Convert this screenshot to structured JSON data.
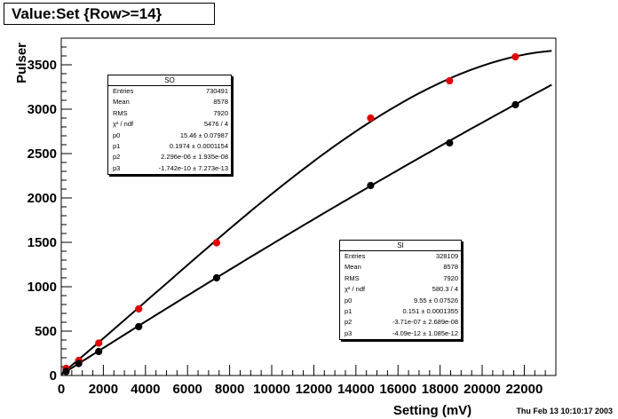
{
  "header": {
    "title": "Value:Set {Row>=14}"
  },
  "footer": {
    "timestamp": "Thu Feb 13 10:10:17 2003"
  },
  "chart_data": {
    "type": "scatter",
    "xlabel": "Setting (mV)",
    "ylabel": "Pulser",
    "xlim": [
      0,
      23500
    ],
    "ylim": [
      0,
      3800
    ],
    "xticks": [
      0,
      2000,
      4000,
      6000,
      8000,
      10000,
      12000,
      14000,
      16000,
      18000,
      20000,
      22000
    ],
    "yticks": [
      0,
      500,
      1000,
      1500,
      2000,
      2500,
      3000,
      3500
    ],
    "series": [
      {
        "name": "SO",
        "color": "#e00000",
        "points": [
          [
            230,
            80
          ],
          [
            830,
            170
          ],
          [
            1780,
            365
          ],
          [
            3680,
            750
          ],
          [
            7380,
            1495
          ],
          [
            14700,
            2900
          ],
          [
            18450,
            3320
          ],
          [
            21580,
            3590
          ]
        ],
        "fit": {
          "p0": 15.46,
          "p1": 0.1974,
          "p2": 2.296e-06,
          "p3": -1.742e-10,
          "xmax": 23300
        },
        "stats": {
          "header": "SO",
          "rows": [
            {
              "label": "Entries",
              "value": "730491"
            },
            {
              "label": "Mean",
              "value": "8578"
            },
            {
              "label": "RMS",
              "value": "7920"
            },
            {
              "label": "χ² / ndf",
              "value": "5476 / 4"
            },
            {
              "label": "p0",
              "value": "15.46 ± 0.07987"
            },
            {
              "label": "p1",
              "value": "0.1974 ± 0.0001154"
            },
            {
              "label": "p2",
              "value": "2.296e-06 ± 1.935e-08"
            },
            {
              "label": "p3",
              "value": "-1.742e-10 ± 7.273e-13"
            }
          ]
        }
      },
      {
        "name": "SI",
        "color": "#000000",
        "points": [
          [
            230,
            45
          ],
          [
            830,
            135
          ],
          [
            1780,
            270
          ],
          [
            3680,
            550
          ],
          [
            7380,
            1100
          ],
          [
            14700,
            2140
          ],
          [
            18450,
            2620
          ],
          [
            21580,
            3050
          ]
        ],
        "fit": {
          "p0": 9.55,
          "p1": 0.151,
          "p2": -3.71e-07,
          "p3": -4.09e-12,
          "xmax": 23300
        },
        "stats": {
          "header": "SI",
          "rows": [
            {
              "label": "Entries",
              "value": "328109"
            },
            {
              "label": "Mean",
              "value": "8578"
            },
            {
              "label": "RMS",
              "value": "7920"
            },
            {
              "label": "χ² / ndf",
              "value": "580.3 / 4"
            },
            {
              "label": "p0",
              "value": "9.55 ± 0.07526"
            },
            {
              "label": "p1",
              "value": "0.151 ± 0.0001355"
            },
            {
              "label": "p2",
              "value": "-3.71e-07 ± 2.689e-08"
            },
            {
              "label": "p3",
              "value": "-4.09e-12 ± 1.085e-12"
            }
          ]
        }
      }
    ]
  }
}
